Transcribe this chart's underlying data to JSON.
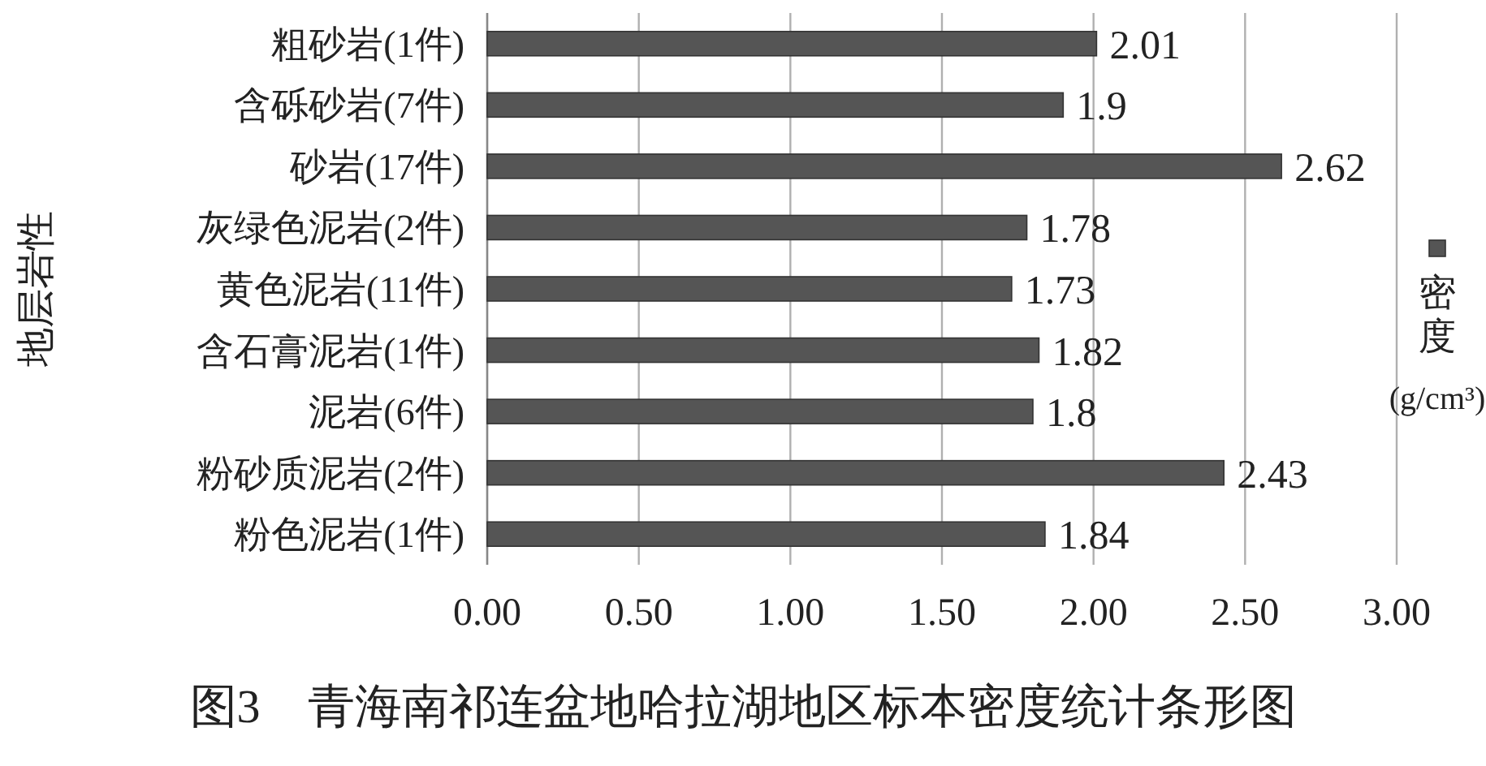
{
  "chart_data": {
    "type": "bar",
    "orientation": "horizontal",
    "title": "图3　青海南祁连盆地哈拉湖地区标本密度统计条形图",
    "ylabel": "地层岩性",
    "categories": [
      "粗砂岩(1件)",
      "含砾砂岩(7件)",
      "砂岩(17件)",
      "灰绿色泥岩(2件)",
      "黄色泥岩(11件)",
      "含石膏泥岩(1件)",
      "泥岩(6件)",
      "粉砂质泥岩(2件)",
      "粉色泥岩(1件)"
    ],
    "series": [
      {
        "name": "密度(g/cm³)",
        "color": "#555555",
        "values": [
          2.01,
          1.9,
          2.62,
          1.78,
          1.73,
          1.82,
          1.8,
          2.43,
          1.84
        ]
      }
    ],
    "xlim": [
      0,
      3
    ],
    "xticks": [
      {
        "value": 0,
        "label": "0.00"
      },
      {
        "value": 0.5,
        "label": "0.50"
      },
      {
        "value": 1,
        "label": "1.00"
      },
      {
        "value": 1.5,
        "label": "1.50"
      },
      {
        "value": 2,
        "label": "2.00"
      },
      {
        "value": 2.5,
        "label": "2.50"
      },
      {
        "value": 3,
        "label": "3.00"
      }
    ],
    "grid": "x",
    "legend": "right",
    "data_labels": true
  }
}
